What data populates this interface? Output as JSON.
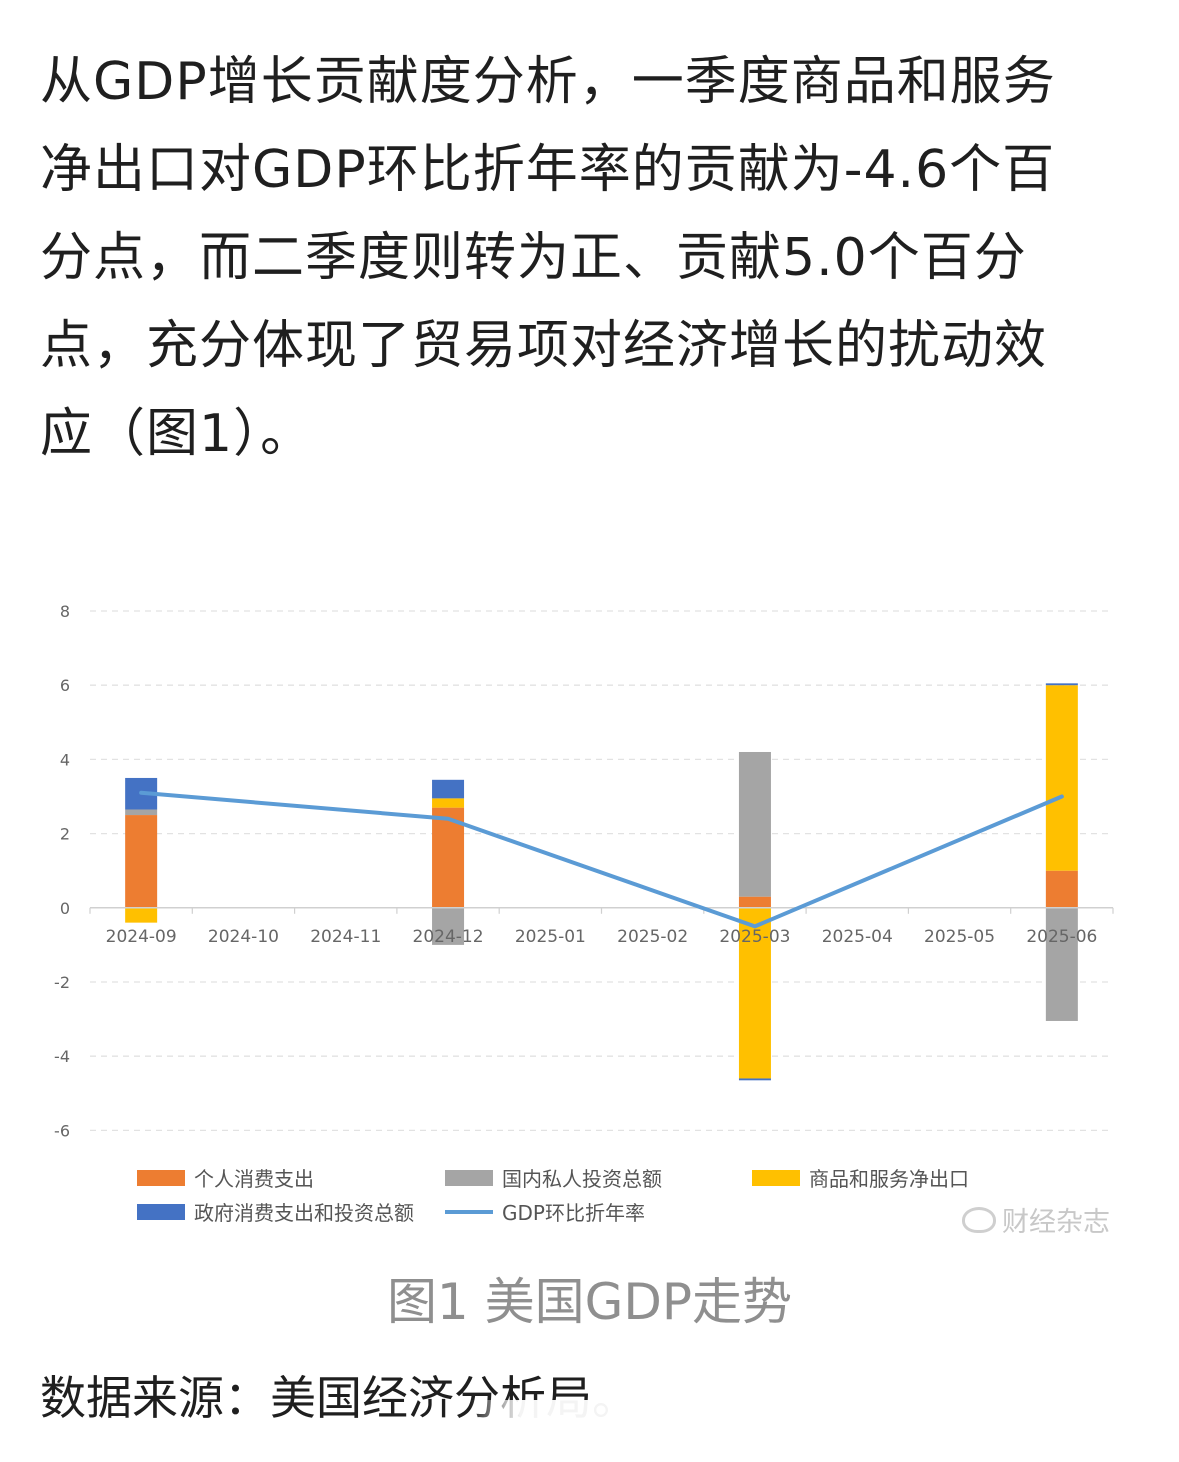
{
  "article": {
    "lines": [
      "从GDP增长贡献度分析，一季度商品和服务",
      "净出口对GDP环比折年率的贡献为-4.6个百",
      "分点，而二季度则转为正、贡献5.0个百分",
      "点，充分体现了贸易项对经济增长的扰动效",
      "应（图1）。"
    ]
  },
  "chart_data": {
    "type": "bar",
    "stacked": true,
    "title": "",
    "xlabel": "",
    "ylabel": "",
    "ylim": [
      -6,
      8
    ],
    "yticks": [
      8,
      6,
      4,
      2,
      0,
      -2,
      -4,
      -6
    ],
    "grid": true,
    "legend_position": "bottom",
    "categories": [
      "2024-09",
      "2024-10",
      "2024-11",
      "2024-12",
      "2025-01",
      "2025-02",
      "2025-03",
      "2025-04",
      "2025-05",
      "2025-06"
    ],
    "series": [
      {
        "name": "个人消费支出",
        "color": "#ed7d31",
        "type": "bar",
        "values": [
          2.5,
          null,
          null,
          2.7,
          null,
          null,
          0.3,
          null,
          null,
          1.0
        ]
      },
      {
        "name": "国内私人投资总额",
        "color": "#a5a5a5",
        "type": "bar",
        "values": [
          0.15,
          null,
          null,
          -1.0,
          null,
          null,
          3.9,
          null,
          null,
          -3.05
        ]
      },
      {
        "name": "商品和服务净出口",
        "color": "#ffc000",
        "type": "bar",
        "values": [
          -0.4,
          null,
          null,
          0.25,
          null,
          null,
          -4.6,
          null,
          null,
          5.0
        ]
      },
      {
        "name": "政府消费支出和投资总额",
        "color": "#4472c4",
        "type": "bar",
        "values": [
          0.85,
          null,
          null,
          0.5,
          null,
          null,
          -0.05,
          null,
          null,
          0.05
        ]
      },
      {
        "name": "GDP环比折年率",
        "color": "#5b9bd5",
        "type": "line",
        "points": [
          [
            "2024-09",
            3.1
          ],
          [
            "2024-12",
            2.4
          ],
          [
            "2025-03",
            -0.5
          ],
          [
            "2025-06",
            3.0
          ]
        ]
      }
    ]
  },
  "watermark": {
    "text": "财经杂志",
    "icon": "weibo-icon"
  },
  "caption": "图1 美国GDP走势",
  "source": "数据来源：美国经济分析局。"
}
